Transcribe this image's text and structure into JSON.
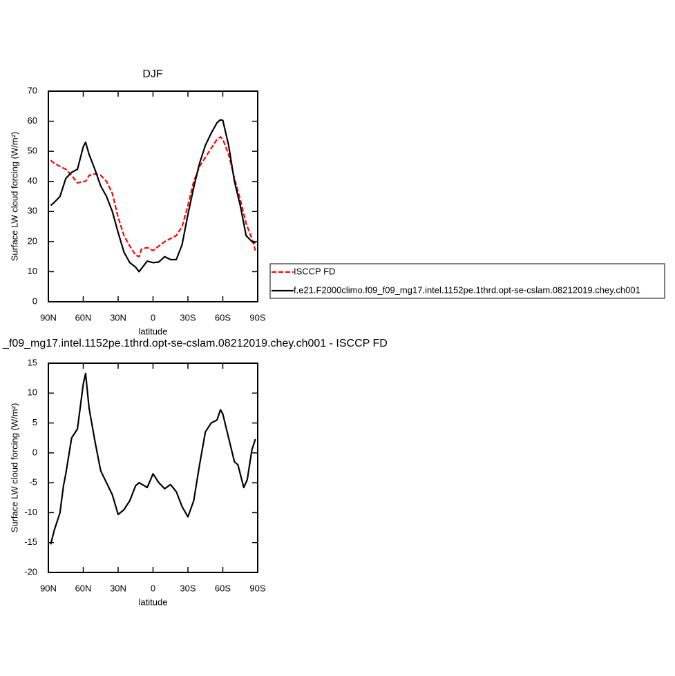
{
  "chart_data": [
    {
      "type": "line",
      "title": "DJF",
      "xlabel": "latitude",
      "ylabel": "Surface LW cloud forcing (W/m²)",
      "x": [
        88,
        85,
        80,
        75,
        70,
        65,
        60,
        58,
        55,
        50,
        45,
        40,
        35,
        30,
        25,
        20,
        15,
        12,
        10,
        5,
        0,
        -5,
        -10,
        -15,
        -20,
        -25,
        -30,
        -35,
        -40,
        -45,
        -50,
        -55,
        -58,
        -60,
        -65,
        -70,
        -75,
        -80,
        -85,
        -88
      ],
      "series": [
        {
          "name": "ISCCP FD",
          "color": "#ff0000",
          "style": "dashed",
          "values": [
            47,
            46,
            45,
            44,
            42,
            39.5,
            40,
            40,
            42,
            42.5,
            42,
            40,
            36,
            28,
            22,
            18.5,
            15.5,
            15,
            17.5,
            18,
            17,
            18.5,
            20,
            21,
            22,
            25,
            32,
            40,
            45,
            48,
            51,
            54,
            54.8,
            54,
            49,
            41,
            34,
            26,
            21,
            17
          ]
        },
        {
          "name": "f.e21.F2000climo.f09_f09_mg17.intel.1152pe.1thrd.opt-se-cslam.08212019.chey.ch001",
          "color": "#000000",
          "style": "solid",
          "values": [
            32,
            33,
            35,
            41,
            43,
            44,
            51.5,
            53,
            49,
            44,
            38.5,
            35,
            30,
            23,
            16.5,
            13,
            11.5,
            10,
            11,
            13.5,
            13,
            13.2,
            15,
            14,
            14,
            19,
            29,
            38,
            46,
            52,
            56,
            59.5,
            60.5,
            60.3,
            52,
            40,
            32,
            22,
            20,
            19.5
          ]
        }
      ],
      "xlim": [
        90,
        -90
      ],
      "xticks": [
        {
          "value": 90,
          "label": "90N"
        },
        {
          "value": 60,
          "label": "60N"
        },
        {
          "value": 30,
          "label": "30N"
        },
        0,
        {
          "value": -30,
          "label": "30S"
        },
        {
          "value": -60,
          "label": "60S"
        },
        {
          "value": -90,
          "label": "90S"
        }
      ],
      "ylim": [
        0,
        70
      ],
      "yticks": [
        0,
        10,
        20,
        30,
        40,
        50,
        60,
        70
      ],
      "legend": "right"
    },
    {
      "type": "line",
      "title": "_f09_mg17.intel.1152pe.1thrd.opt-se-cslam.08212019.chey.ch001 - ISCCP FD",
      "xlabel": "latitude",
      "ylabel": "Surface LW cloud forcing (W/m²)",
      "x": [
        88,
        85,
        80,
        77,
        75,
        70,
        65,
        60,
        58,
        55,
        50,
        45,
        40,
        35,
        30,
        25,
        20,
        15,
        12,
        10,
        5,
        0,
        -5,
        -10,
        -15,
        -20,
        -25,
        -30,
        -35,
        -40,
        -45,
        -50,
        -55,
        -58,
        -60,
        -65,
        -70,
        -73,
        -78,
        -81,
        -85,
        -88
      ],
      "series": [
        {
          "color": "#000000",
          "style": "solid",
          "values": [
            -15.3,
            -13,
            -10,
            -5.5,
            -3.5,
            2.5,
            4,
            11.5,
            13.3,
            7.5,
            2,
            -3,
            -5,
            -7,
            -10.3,
            -9.5,
            -8,
            -5.5,
            -5,
            -5.2,
            -5.8,
            -3.5,
            -5,
            -6,
            -5.3,
            -6.5,
            -9,
            -10.7,
            -8,
            -2,
            3.5,
            5,
            5.5,
            7.2,
            6.5,
            2.5,
            -1.5,
            -2,
            -5.8,
            -4.5,
            0.5,
            2.3
          ]
        }
      ],
      "xlim": [
        90,
        -90
      ],
      "xticks": [
        {
          "value": 90,
          "label": "90N"
        },
        {
          "value": 60,
          "label": "60N"
        },
        {
          "value": 30,
          "label": "30N"
        },
        0,
        {
          "value": -30,
          "label": "30S"
        },
        {
          "value": -60,
          "label": "60S"
        },
        {
          "value": -90,
          "label": "90S"
        }
      ],
      "ylim": [
        -20,
        15
      ],
      "yticks": [
        -20,
        -15,
        -10,
        -5,
        0,
        5,
        10,
        15
      ]
    }
  ]
}
